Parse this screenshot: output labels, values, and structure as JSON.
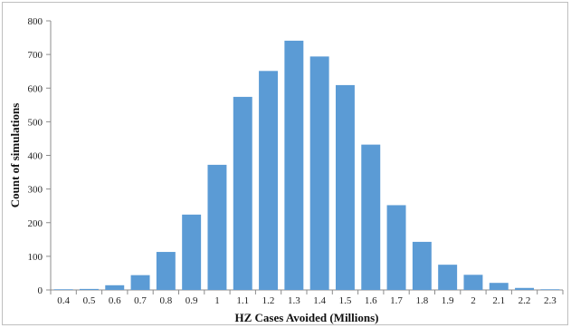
{
  "chart_data": {
    "type": "bar",
    "xlabel": "HZ Cases Avoided (Millions)",
    "ylabel": "Count of simulations",
    "categories": [
      "0.4",
      "0.5",
      "0.6",
      "0.7",
      "0.8",
      "0.9",
      "1",
      "1.1",
      "1.2",
      "1.3",
      "1.4",
      "1.5",
      "1.6",
      "1.7",
      "1.8",
      "1.9",
      "2",
      "2.1",
      "2.2",
      "2.3"
    ],
    "values": [
      2,
      3,
      14,
      44,
      113,
      224,
      372,
      574,
      651,
      741,
      694,
      609,
      432,
      252,
      143,
      75,
      45,
      21,
      6,
      2
    ],
    "ylim": [
      0,
      800
    ],
    "yticks": [
      0,
      100,
      200,
      300,
      400,
      500,
      600,
      700,
      800
    ],
    "ytick_labels": [
      "0",
      "100",
      "200",
      "300",
      "400",
      "500",
      "600",
      "700",
      "800"
    ],
    "grid": false,
    "legend": "none",
    "bar_color": "#5b9bd5"
  }
}
